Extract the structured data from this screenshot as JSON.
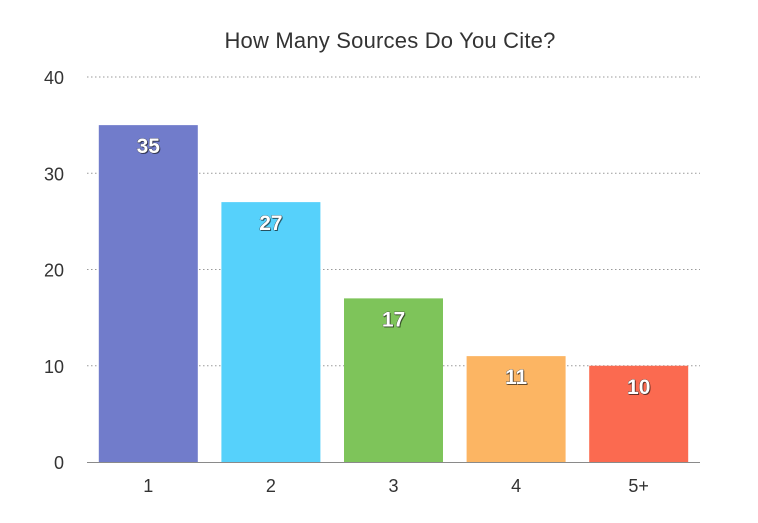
{
  "chart_data": {
    "type": "bar",
    "title": "How Many Sources Do You Cite?",
    "xlabel": "",
    "ylabel": "",
    "categories": [
      "1",
      "2",
      "3",
      "4",
      "5+"
    ],
    "values": [
      35,
      27,
      17,
      11,
      10
    ],
    "colors": [
      "#717ccb",
      "#56d1fb",
      "#7ec45a",
      "#fcb563",
      "#fb6a50"
    ],
    "ylim": [
      0,
      40
    ],
    "yticks": [
      0,
      10,
      20,
      30,
      40
    ],
    "grid": true,
    "legend": "none",
    "data_labels": true
  }
}
